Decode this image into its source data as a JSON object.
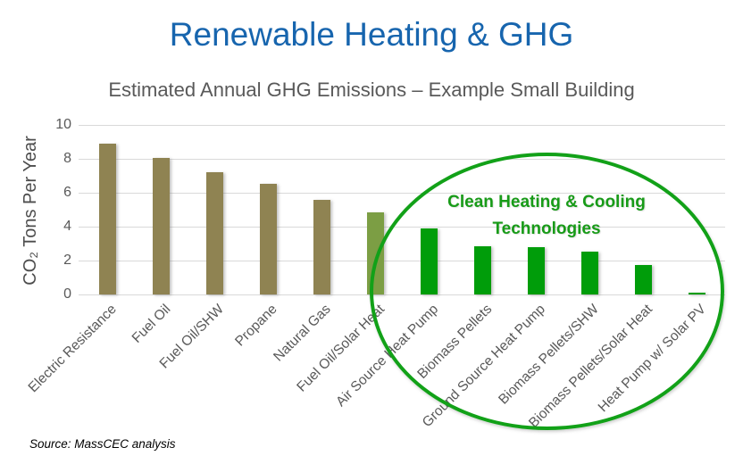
{
  "page": {
    "title": "Renewable Heating & GHG",
    "title_color": "#1765AE",
    "source_note": "Source: MassCEC analysis"
  },
  "chart_data": {
    "type": "bar",
    "title": "Estimated Annual GHG Emissions – Example Small Building",
    "ylabel": "CO₂ Tons Per Year",
    "xlabel": "",
    "ylim": [
      0,
      10
    ],
    "yticks": [
      0,
      2,
      4,
      6,
      8,
      10
    ],
    "grid": true,
    "legend": "none",
    "categories": [
      "Electric Resistance",
      "Fuel Oil",
      "Fuel Oil/SHW",
      "Propane",
      "Natural Gas",
      "Fuel Oil/Solar Heat",
      "Air Source Heat Pump",
      "Biomass Pellets",
      "Ground Source Heat Pump",
      "Biomass Pellets/SHW",
      "Biomass Pellets/Solar Heat",
      "Heat Pump w/ Solar PV"
    ],
    "values": [
      8.9,
      8.05,
      7.2,
      6.55,
      5.6,
      4.85,
      3.9,
      2.85,
      2.8,
      2.55,
      1.75,
      0.1
    ],
    "bar_colors": [
      "#8F8352",
      "#8F8352",
      "#8F8352",
      "#8F8352",
      "#8F8352",
      "#7C9E44",
      "#009D0A",
      "#009D0A",
      "#009D0A",
      "#009D0A",
      "#009D0A",
      "#009D0A"
    ],
    "colors": {
      "fossil_bar": "#8F8352",
      "solar_hybrid_bar": "#7C9E44",
      "clean_bar": "#009D0A",
      "gridline": "#D9D9D9",
      "tick_text": "#595959",
      "axis_title_text": "#4D4D4D",
      "chart_title_text": "#595959"
    },
    "annotation": {
      "line1": "Clean Heating & Cooling",
      "line2": "Technologies",
      "text_color": "#189B18",
      "ellipse_color": "#12A118"
    }
  }
}
